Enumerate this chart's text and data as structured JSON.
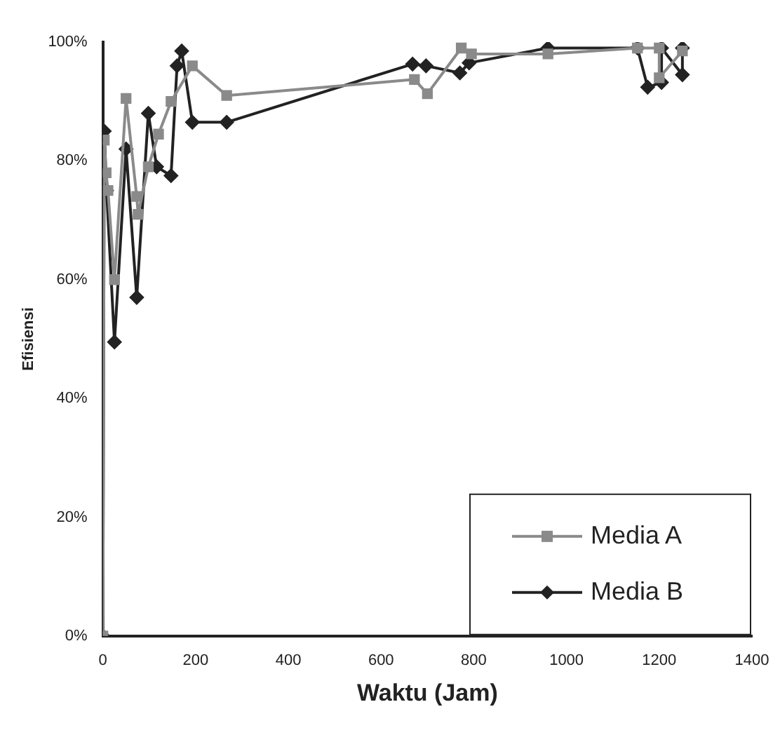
{
  "chart_data": {
    "type": "line",
    "xlabel": "Waktu (Jam)",
    "ylabel": "Efisiensi",
    "xlim": [
      0,
      1400
    ],
    "xticks": [
      0,
      200,
      400,
      600,
      800,
      1000,
      1200,
      1400
    ],
    "ylim": [
      0,
      100
    ],
    "yticks": [
      {
        "value": 0,
        "label": "0%"
      },
      {
        "value": 20,
        "label": "20%"
      },
      {
        "value": 40,
        "label": "40%"
      },
      {
        "value": 60,
        "label": "60%"
      },
      {
        "value": 80,
        "label": "80%"
      },
      {
        "value": 100,
        "label": "100%"
      }
    ],
    "grid": false,
    "legend": "bottom right",
    "line_style": "solid",
    "series": [
      {
        "name": "Media A",
        "color": "#8a8a8a",
        "marker": "square",
        "x": [
          0,
          3,
          7,
          11,
          25,
          50,
          73,
          76,
          98,
          120,
          147,
          193,
          267,
          672,
          700,
          773,
          795,
          960,
          1153,
          1200,
          1200,
          1250
        ],
        "values": [
          0,
          83.5,
          78,
          75,
          60,
          90.5,
          74,
          71,
          79,
          84.5,
          90,
          96,
          91,
          93.7,
          91.3,
          99,
          98,
          98,
          99,
          99,
          94,
          98.5
        ]
      },
      {
        "name": "Media B",
        "color": "#222222",
        "marker": "diamond",
        "x": [
          0,
          3,
          8,
          25,
          50,
          73,
          98,
          116,
          147,
          160,
          170,
          193,
          267,
          668,
          697,
          770,
          790,
          960,
          1153,
          1175,
          1205,
          1205,
          1250,
          1250
        ],
        "values": [
          0,
          85,
          75,
          49.5,
          82,
          57,
          88,
          79,
          77.5,
          96,
          98.5,
          86.5,
          86.5,
          96.3,
          96,
          94.8,
          96.5,
          99,
          99,
          92.4,
          93.2,
          99,
          94.5,
          99
        ]
      }
    ]
  }
}
